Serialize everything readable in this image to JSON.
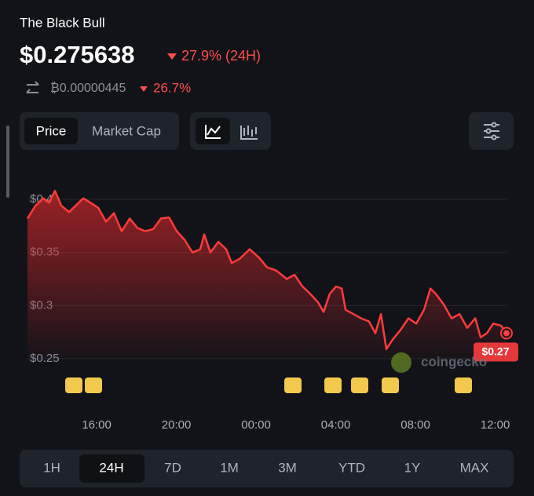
{
  "header": {
    "name": "The Black Bull",
    "price": "$0.275638",
    "change": "27.9% (24H)",
    "btc_price": "₿0.00000445",
    "btc_change": "26.7%"
  },
  "tabs": [
    "Price",
    "Market Cap"
  ],
  "ranges": [
    "1H",
    "24H",
    "7D",
    "1M",
    "3M",
    "YTD",
    "1Y",
    "MAX"
  ],
  "watermark": "coingecko",
  "chart_data": {
    "type": "area",
    "color": "#ff3b3b",
    "grid": true,
    "x": [
      12.53,
      12.93,
      13.32,
      13.6,
      13.91,
      14.23,
      14.62,
      14.94,
      15.33,
      15.68,
      16.08,
      16.47,
      16.87,
      17.26,
      17.66,
      18.05,
      18.44,
      18.84,
      19.23,
      19.63,
      20.02,
      20.41,
      20.81,
      21.2,
      21.4,
      21.71,
      22.11,
      22.5,
      22.78,
      23.17,
      23.68,
      24.16,
      24.55,
      25.02,
      25.54,
      25.93,
      26.33,
      26.72,
      27.11,
      27.39,
      27.7,
      28.02,
      28.3,
      28.49,
      28.89,
      29.28,
      29.67,
      29.99,
      30.27,
      30.54,
      30.86,
      31.25,
      31.65,
      32.04,
      32.43,
      32.75,
      33.02,
      33.42,
      33.81,
      34.21,
      34.6,
      35.0,
      35.27,
      35.59,
      35.9,
      36.3,
      36.57
    ],
    "values": [
      0.382,
      0.394,
      0.401,
      0.397,
      0.408,
      0.394,
      0.388,
      0.394,
      0.401,
      0.397,
      0.392,
      0.379,
      0.387,
      0.37,
      0.382,
      0.373,
      0.37,
      0.372,
      0.382,
      0.383,
      0.37,
      0.362,
      0.35,
      0.353,
      0.367,
      0.35,
      0.36,
      0.353,
      0.34,
      0.344,
      0.353,
      0.345,
      0.336,
      0.333,
      0.325,
      0.329,
      0.318,
      0.311,
      0.303,
      0.294,
      0.311,
      0.318,
      0.316,
      0.296,
      0.292,
      0.288,
      0.285,
      0.274,
      0.292,
      0.259,
      0.268,
      0.277,
      0.288,
      0.283,
      0.296,
      0.316,
      0.311,
      0.301,
      0.288,
      0.292,
      0.279,
      0.288,
      0.27,
      0.274,
      0.283,
      0.281,
      0.274
    ],
    "last_value_label": "$0.27",
    "xlim": [
      12.53,
      36.57
    ],
    "xticks": [
      {
        "value": 16,
        "label": "16:00"
      },
      {
        "value": 20,
        "label": "20:00"
      },
      {
        "value": 24,
        "label": "00:00"
      },
      {
        "value": 28,
        "label": "04:00"
      },
      {
        "value": 32,
        "label": "08:00"
      },
      {
        "value": 36,
        "label": "12:00"
      }
    ],
    "ylim": [
      0.25,
      0.4
    ],
    "yticks": [
      {
        "value": 0.25,
        "label": "$0.25"
      },
      {
        "value": 0.3,
        "label": "$0.3"
      },
      {
        "value": 0.35,
        "label": "$0.35"
      },
      {
        "value": 0.4,
        "label": "$0.4"
      }
    ]
  }
}
